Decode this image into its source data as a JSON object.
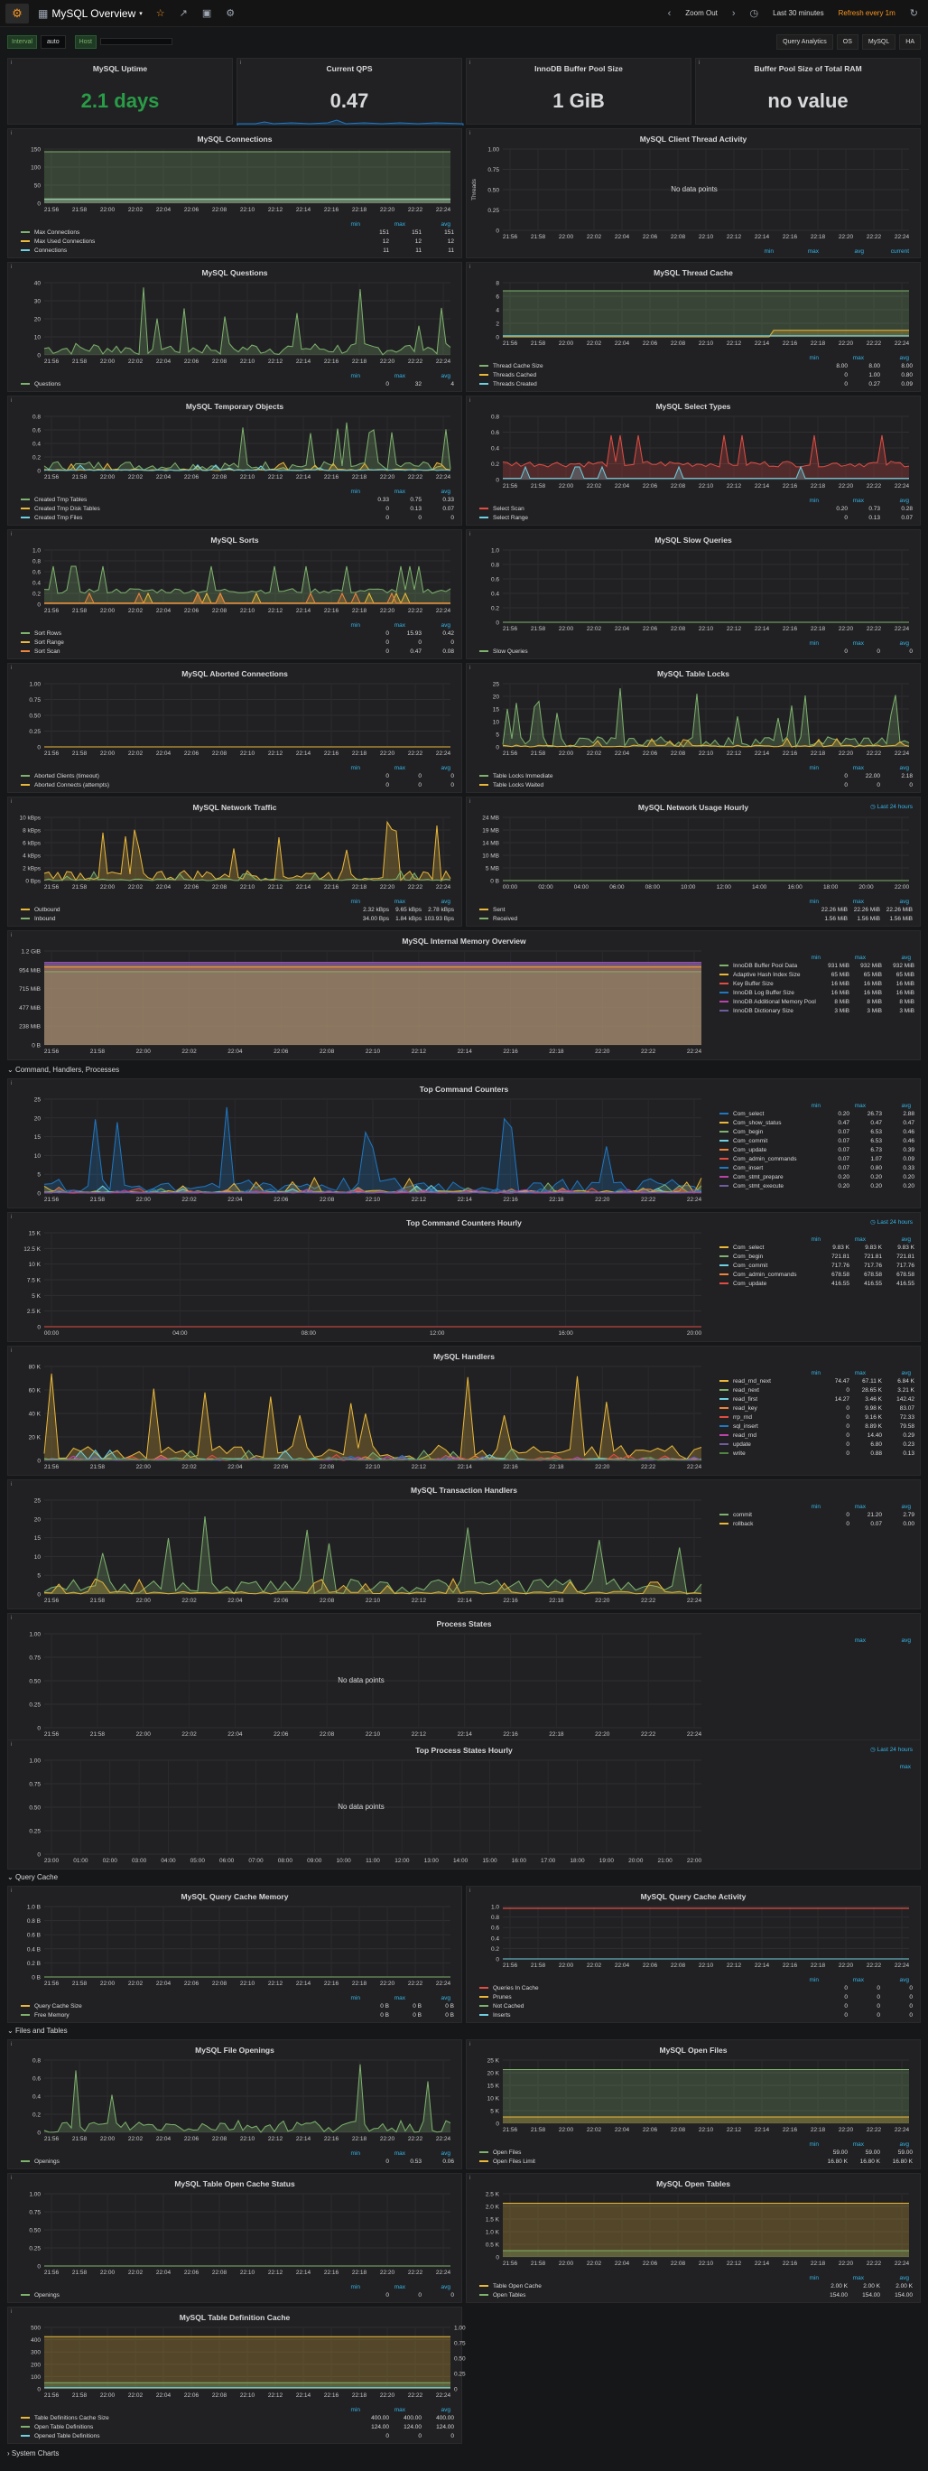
{
  "header": {
    "title": "MySQL Overview",
    "zoom_out": "Zoom Out",
    "time_range": "Last 30 minutes",
    "refresh": "Refresh every 1m",
    "query_analytics": "Query Analytics",
    "os": "OS",
    "mysql": "MySQL",
    "ha": "HA"
  },
  "vars": {
    "interval_label": "Interval",
    "interval_value": "auto",
    "host_label": "Host",
    "host_value": ""
  },
  "rows": {
    "cmd": "Command, Handlers, Processes",
    "qc": "Query Cache",
    "files": "Files and Tables",
    "system": "System Charts"
  },
  "stats": [
    {
      "title": "MySQL Uptime",
      "value": "2.1 days",
      "color": "#299c46"
    },
    {
      "title": "Current QPS",
      "value": "0.47",
      "color": "#d8d9da"
    },
    {
      "title": "InnoDB Buffer Pool Size",
      "value": "1 GiB",
      "color": "#d8d9da"
    },
    {
      "title": "Buffer Pool Size of Total RAM",
      "value": "no value",
      "color": "#d8d9da"
    }
  ],
  "time_ticks": [
    "21:56",
    "21:58",
    "22:00",
    "22:02",
    "22:04",
    "22:06",
    "22:08",
    "22:10",
    "22:12",
    "22:14",
    "22:16",
    "22:18",
    "22:20",
    "22:22",
    "22:24"
  ],
  "hourly_ticks": [
    "00:00",
    "04:00",
    "08:00",
    "12:00",
    "16:00",
    "20:00"
  ],
  "process_hourly_ticks": [
    "23:00",
    "01:00",
    "02:00",
    "03:00",
    "04:00",
    "05:00",
    "06:00",
    "07:00",
    "08:00",
    "09:00",
    "10:00",
    "11:00",
    "12:00",
    "13:00",
    "14:00",
    "15:00",
    "16:00",
    "17:00",
    "18:00",
    "19:00",
    "20:00",
    "21:00",
    "22:00"
  ],
  "legend_cols": {
    "min": "min",
    "max": "max",
    "avg": "avg",
    "current": "current"
  },
  "no_data": "No data points",
  "last_24h": "Last 24 hours",
  "panels": {
    "connections": {
      "title": "MySQL Connections",
      "y": [
        "150",
        "100",
        "50",
        "0"
      ],
      "series": [
        {
          "name": "Max Connections",
          "color": "#7eb26d",
          "min": "151",
          "max": "151",
          "avg": "151"
        },
        {
          "name": "Max Used Connections",
          "color": "#eab839",
          "min": "12",
          "max": "12",
          "avg": "12"
        },
        {
          "name": "Connections",
          "color": "#6ed0e0",
          "min": "11",
          "max": "11",
          "avg": "11"
        }
      ]
    },
    "client_thread": {
      "title": "MySQL Client Thread Activity",
      "y": [
        "1.00",
        "0.75",
        "0.50",
        "0.25",
        "0"
      ],
      "ylabel": "Threads"
    },
    "questions": {
      "title": "MySQL Questions",
      "y": [
        "40",
        "30",
        "20",
        "10",
        "0"
      ],
      "series": [
        {
          "name": "Questions",
          "color": "#7eb26d",
          "min": "0",
          "max": "32",
          "avg": "4"
        }
      ]
    },
    "thread_cache": {
      "title": "MySQL Thread Cache",
      "y": [
        "8",
        "6",
        "4",
        "2",
        "0"
      ],
      "series": [
        {
          "name": "Thread Cache Size",
          "color": "#7eb26d",
          "min": "8.00",
          "max": "8.00",
          "avg": "8.00"
        },
        {
          "name": "Threads Cached",
          "color": "#eab839",
          "min": "0",
          "max": "1.00",
          "avg": "0.80"
        },
        {
          "name": "Threads Created",
          "color": "#6ed0e0",
          "min": "0",
          "max": "0.27",
          "avg": "0.09"
        }
      ]
    },
    "temp_objects": {
      "title": "MySQL Temporary Objects",
      "y": [
        "0.8",
        "0.6",
        "0.4",
        "0.2",
        "0"
      ],
      "series": [
        {
          "name": "Created Tmp Tables",
          "color": "#7eb26d",
          "min": "0.33",
          "max": "0.75",
          "avg": "0.33"
        },
        {
          "name": "Created Tmp Disk Tables",
          "color": "#eab839",
          "min": "0",
          "max": "0.13",
          "avg": "0.07"
        },
        {
          "name": "Created Tmp Files",
          "color": "#6ed0e0",
          "min": "0",
          "max": "0",
          "avg": "0"
        }
      ]
    },
    "select_types": {
      "title": "MySQL Select Types",
      "y": [
        "0.8",
        "0.6",
        "0.4",
        "0.2",
        "0"
      ],
      "series": [
        {
          "name": "Select Scan",
          "color": "#e24d42",
          "min": "0.20",
          "max": "0.73",
          "avg": "0.28"
        },
        {
          "name": "Select Range",
          "color": "#6ed0e0",
          "min": "0",
          "max": "0.13",
          "avg": "0.07"
        }
      ]
    },
    "sorts": {
      "title": "MySQL Sorts",
      "y": [
        "1.0",
        "0.8",
        "0.6",
        "0.4",
        "0.2",
        "0"
      ],
      "series": [
        {
          "name": "Sort Rows",
          "color": "#7eb26d",
          "min": "0",
          "max": "15.93",
          "avg": "0.42"
        },
        {
          "name": "Sort Range",
          "color": "#eab839",
          "min": "0",
          "max": "0",
          "avg": "0"
        },
        {
          "name": "Sort Scan",
          "color": "#ef843c",
          "min": "0",
          "max": "0.47",
          "avg": "0.08"
        }
      ]
    },
    "slow_queries": {
      "title": "MySQL Slow Queries",
      "y": [
        "1.0",
        "0.8",
        "0.6",
        "0.4",
        "0.2",
        "0"
      ],
      "series": [
        {
          "name": "Slow Queries",
          "color": "#7eb26d",
          "min": "0",
          "max": "0",
          "avg": "0"
        }
      ]
    },
    "aborted": {
      "title": "MySQL Aborted Connections",
      "y": [
        "1.00",
        "0.75",
        "0.50",
        "0.25",
        "0"
      ],
      "series": [
        {
          "name": "Aborted Clients (timeout)",
          "color": "#7eb26d",
          "min": "0",
          "max": "0",
          "avg": "0"
        },
        {
          "name": "Aborted Connects (attempts)",
          "color": "#eab839",
          "min": "0",
          "max": "0",
          "avg": "0"
        }
      ]
    },
    "table_locks": {
      "title": "MySQL Table Locks",
      "y": [
        "25",
        "20",
        "15",
        "10",
        "5",
        "0"
      ],
      "series": [
        {
          "name": "Table Locks Immediate",
          "color": "#7eb26d",
          "min": "0",
          "max": "22.00",
          "avg": "2.18"
        },
        {
          "name": "Table Locks Waited",
          "color": "#eab839",
          "min": "0",
          "max": "0",
          "avg": "0"
        }
      ]
    },
    "network": {
      "title": "MySQL Network Traffic",
      "y": [
        "10 kBps",
        "8 kBps",
        "6 kBps",
        "4 kBps",
        "2 kBps",
        "0 Bps"
      ],
      "series": [
        {
          "name": "Outbound",
          "color": "#eab839",
          "min": "2.32 kBps",
          "max": "9.65 kBps",
          "avg": "2.78 kBps"
        },
        {
          "name": "Inbound",
          "color": "#7eb26d",
          "min": "34.00 Bps",
          "max": "1.84 kBps",
          "avg": "103.93 Bps"
        }
      ]
    },
    "network_hourly": {
      "title": "MySQL Network Usage Hourly",
      "y": [
        "24 MB",
        "19 MB",
        "14 MB",
        "10 MB",
        "5 MB",
        "0 B"
      ],
      "x": [
        "00:00",
        "02:00",
        "04:00",
        "06:00",
        "08:00",
        "10:00",
        "12:00",
        "14:00",
        "16:00",
        "18:00",
        "20:00",
        "22:00"
      ],
      "series": [
        {
          "name": "Sent",
          "color": "#eab839",
          "min": "22.26 MiB",
          "max": "22.26 MiB",
          "avg": "22.26 MiB"
        },
        {
          "name": "Received",
          "color": "#7eb26d",
          "min": "1.56 MiB",
          "max": "1.56 MiB",
          "avg": "1.56 MiB"
        }
      ]
    },
    "memory": {
      "title": "MySQL Internal Memory Overview",
      "y": [
        "1.2 GiB",
        "954 MiB",
        "715 MiB",
        "477 MiB",
        "238 MiB",
        "0 B"
      ],
      "series": [
        {
          "name": "InnoDB Buffer Pool Data",
          "color": "#7eb26d",
          "min": "931 MiB",
          "max": "932 MiB",
          "avg": "932 MiB"
        },
        {
          "name": "Adaptive Hash Index Size",
          "color": "#eab839",
          "min": "65 MiB",
          "max": "65 MiB",
          "avg": "65 MiB"
        },
        {
          "name": "Key Buffer Size",
          "color": "#e24d42",
          "min": "16 MiB",
          "max": "16 MiB",
          "avg": "16 MiB"
        },
        {
          "name": "InnoDB Log Buffer Size",
          "color": "#1f78c1",
          "min": "16 MiB",
          "max": "16 MiB",
          "avg": "16 MiB"
        },
        {
          "name": "InnoDB Additional Memory Pool Size",
          "color": "#ba43a9",
          "min": "8 MiB",
          "max": "8 MiB",
          "avg": "8 MiB"
        },
        {
          "name": "InnoDB Dictionary Size",
          "color": "#705da0",
          "min": "3 MiB",
          "max": "3 MiB",
          "avg": "3 MiB"
        }
      ]
    },
    "top_cmd": {
      "title": "Top Command Counters",
      "y": [
        "25",
        "20",
        "15",
        "10",
        "5",
        "0"
      ],
      "series": [
        {
          "name": "Com_select",
          "color": "#1f78c1",
          "min": "0.20",
          "max": "26.73",
          "avg": "2.88"
        },
        {
          "name": "Com_show_status",
          "color": "#eab839",
          "min": "0.47",
          "max": "0.47",
          "avg": "0.47"
        },
        {
          "name": "Com_begin",
          "color": "#7eb26d",
          "min": "0.07",
          "max": "6.53",
          "avg": "0.46"
        },
        {
          "name": "Com_commit",
          "color": "#6ed0e0",
          "min": "0.07",
          "max": "6.53",
          "avg": "0.46"
        },
        {
          "name": "Com_update",
          "color": "#ef843c",
          "min": "0.07",
          "max": "6.73",
          "avg": "0.39"
        },
        {
          "name": "Com_admin_commands",
          "color": "#e24d42",
          "min": "0.07",
          "max": "1.07",
          "avg": "0.09"
        },
        {
          "name": "Com_insert",
          "color": "#1f78c1",
          "min": "0.07",
          "max": "0.80",
          "avg": "0.33"
        },
        {
          "name": "Com_stmt_prepare",
          "color": "#ba43a9",
          "min": "0.20",
          "max": "0.20",
          "avg": "0.20"
        },
        {
          "name": "Com_stmt_execute",
          "color": "#705da0",
          "min": "0.20",
          "max": "0.20",
          "avg": "0.20"
        }
      ]
    },
    "top_cmd_hourly": {
      "title": "Top Command Counters Hourly",
      "y": [
        "15 K",
        "12.5 K",
        "10 K",
        "7.5 K",
        "5 K",
        "2.5 K",
        "0"
      ],
      "series": [
        {
          "name": "Com_select",
          "color": "#eab839",
          "min": "9.83 K",
          "max": "9.83 K",
          "avg": "9.83 K"
        },
        {
          "name": "Com_begin",
          "color": "#7eb26d",
          "min": "721.81",
          "max": "721.81",
          "avg": "721.81"
        },
        {
          "name": "Com_commit",
          "color": "#6ed0e0",
          "min": "717.76",
          "max": "717.76",
          "avg": "717.76"
        },
        {
          "name": "Com_admin_commands",
          "color": "#ef843c",
          "min": "678.58",
          "max": "678.58",
          "avg": "678.58"
        },
        {
          "name": "Com_update",
          "color": "#e24d42",
          "min": "416.55",
          "max": "416.55",
          "avg": "416.55"
        }
      ]
    },
    "handlers": {
      "title": "MySQL Handlers",
      "y": [
        "80 K",
        "60 K",
        "40 K",
        "20 K",
        "0"
      ],
      "series": [
        {
          "name": "read_rnd_next",
          "color": "#eab839",
          "min": "74.47",
          "max": "67.11 K",
          "avg": "6.84 K"
        },
        {
          "name": "read_next",
          "color": "#7eb26d",
          "min": "0",
          "max": "28.65 K",
          "avg": "3.21 K"
        },
        {
          "name": "read_first",
          "color": "#6ed0e0",
          "min": "14.27",
          "max": "3.46 K",
          "avg": "142.42"
        },
        {
          "name": "read_key",
          "color": "#ef843c",
          "min": "0",
          "max": "9.98 K",
          "avg": "83.07"
        },
        {
          "name": "rrp_rnd",
          "color": "#e24d42",
          "min": "0",
          "max": "9.16 K",
          "avg": "72.33"
        },
        {
          "name": "sql_insert",
          "color": "#1f78c1",
          "min": "0",
          "max": "8.89 K",
          "avg": "79.58"
        },
        {
          "name": "read_rnd",
          "color": "#ba43a9",
          "min": "0",
          "max": "14.40",
          "avg": "0.29"
        },
        {
          "name": "update",
          "color": "#705da0",
          "min": "0",
          "max": "6.80",
          "avg": "0.23"
        },
        {
          "name": "write",
          "color": "#508642",
          "min": "0",
          "max": "0.88",
          "avg": "0.13"
        }
      ]
    },
    "trans_handlers": {
      "title": "MySQL Transaction Handlers",
      "y": [
        "25",
        "20",
        "15",
        "10",
        "5",
        "0"
      ],
      "series": [
        {
          "name": "commit",
          "color": "#7eb26d",
          "min": "0",
          "max": "21.20",
          "avg": "2.79"
        },
        {
          "name": "rollback",
          "color": "#eab839",
          "min": "0",
          "max": "0.07",
          "avg": "0.00"
        }
      ]
    },
    "process_states": {
      "title": "Process States",
      "y": [
        "1.00",
        "0.75",
        "0.50",
        "0.25",
        "0"
      ]
    },
    "top_process_hourly": {
      "title": "Top Process States Hourly",
      "y": [
        "1.00",
        "0.75",
        "0.50",
        "0.25",
        "0"
      ]
    },
    "qc_memory": {
      "title": "MySQL Query Cache Memory",
      "y": [
        "1.0 B",
        "0.8 B",
        "0.6 B",
        "0.4 B",
        "0.2 B",
        "0 B"
      ],
      "series": [
        {
          "name": "Query Cache Size",
          "color": "#eab839",
          "min": "0 B",
          "max": "0 B",
          "avg": "0 B"
        },
        {
          "name": "Free Memory",
          "color": "#7eb26d",
          "min": "0 B",
          "max": "0 B",
          "avg": "0 B"
        }
      ]
    },
    "qc_activity": {
      "title": "MySQL Query Cache Activity",
      "y": [
        "1.0",
        "0.8",
        "0.6",
        "0.4",
        "0.2",
        "0"
      ],
      "series": [
        {
          "name": "Queries In Cache",
          "color": "#e24d42",
          "min": "0",
          "max": "0",
          "avg": "0"
        },
        {
          "name": "Prunes",
          "color": "#eab839",
          "min": "0",
          "max": "0",
          "avg": "0"
        },
        {
          "name": "Not Cached",
          "color": "#7eb26d",
          "min": "0",
          "max": "0",
          "avg": "0"
        },
        {
          "name": "Inserts",
          "color": "#6ed0e0",
          "min": "0",
          "max": "0",
          "avg": "0"
        }
      ]
    },
    "file_openings": {
      "title": "MySQL File Openings",
      "y": [
        "0.8",
        "0.6",
        "0.4",
        "0.2",
        "0"
      ],
      "series": [
        {
          "name": "Openings",
          "color": "#7eb26d",
          "min": "0",
          "max": "0.53",
          "avg": "0.06"
        }
      ]
    },
    "open_files": {
      "title": "MySQL Open Files",
      "y": [
        "25 K",
        "20 K",
        "15 K",
        "10 K",
        "5 K",
        "0"
      ],
      "series": [
        {
          "name": "Open Files",
          "color": "#7eb26d",
          "min": "59.00",
          "max": "59.00",
          "avg": "59.00"
        },
        {
          "name": "Open Files Limit",
          "color": "#eab839",
          "min": "16.80 K",
          "max": "16.80 K",
          "avg": "16.80 K"
        }
      ]
    },
    "table_open_cache": {
      "title": "MySQL Table Open Cache Status",
      "y": [
        "1.00",
        "0.75",
        "0.50",
        "0.25",
        "0"
      ],
      "series": [
        {
          "name": "Openings",
          "color": "#7eb26d",
          "min": "0",
          "max": "0",
          "avg": "0"
        }
      ]
    },
    "open_tables": {
      "title": "MySQL Open Tables",
      "y": [
        "2.5 K",
        "2.0 K",
        "1.5 K",
        "1.0 K",
        "0.5 K",
        "0"
      ],
      "series": [
        {
          "name": "Table Open Cache",
          "color": "#eab839",
          "min": "2.00 K",
          "max": "2.00 K",
          "avg": "2.00 K"
        },
        {
          "name": "Open Tables",
          "color": "#7eb26d",
          "min": "154.00",
          "max": "154.00",
          "avg": "154.00"
        }
      ]
    },
    "table_def_cache": {
      "title": "MySQL Table Definition Cache",
      "y": [
        "500",
        "400",
        "300",
        "200",
        "100",
        "0"
      ],
      "y2": [
        "1.00",
        "0.75",
        "0.50",
        "0.25",
        "0"
      ],
      "series": [
        {
          "name": "Table Definitions Cache Size",
          "color": "#eab839",
          "min": "400.00",
          "max": "400.00",
          "avg": "400.00"
        },
        {
          "name": "Open Table Definitions",
          "color": "#7eb26d",
          "min": "124.00",
          "max": "124.00",
          "avg": "124.00"
        },
        {
          "name": "Opened Table Definitions",
          "color": "#6ed0e0",
          "min": "0",
          "max": "0",
          "avg": "0"
        }
      ]
    }
  }
}
